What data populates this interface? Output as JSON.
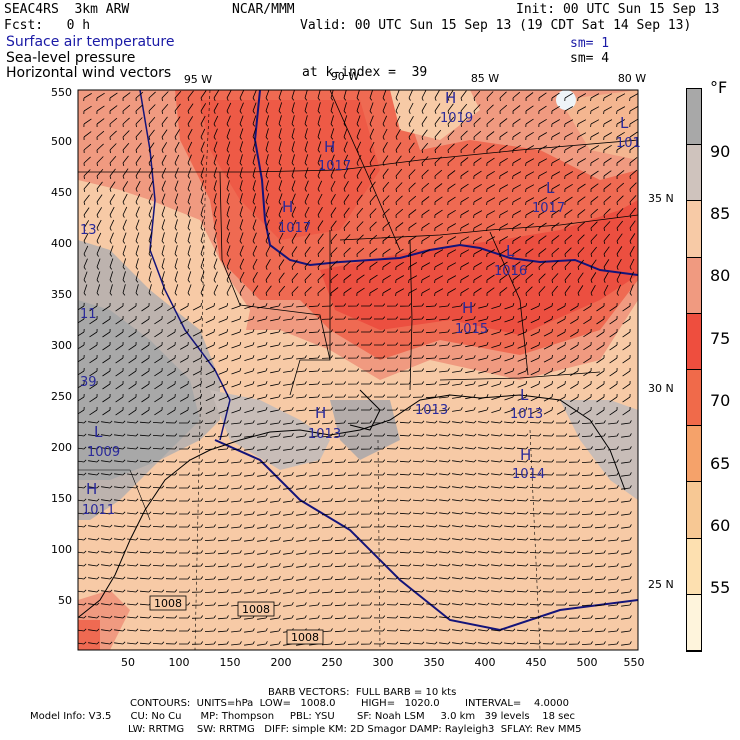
{
  "header": {
    "model": "SEAC4RS  3km ARW",
    "org": "NCAR/MMM",
    "init": "Init: 00 UTC Sun 15 Sep 13",
    "fcst": "Fcst:   0 h",
    "valid": "Valid: 00 UTC Sun 15 Sep 13 (19 CDT Sat 14 Sep 13)",
    "field1": "Surface air temperature",
    "field2": "Sea-level pressure",
    "field3": "Horizontal wind vectors",
    "sm1": "sm= 1",
    "sm2": "sm= 4",
    "kindex": "at k-index =  39"
  },
  "map": {
    "x_ticks": [
      "50",
      "100",
      "150",
      "200",
      "250",
      "300",
      "350",
      "400",
      "450",
      "500",
      "550"
    ],
    "y_ticks": [
      "50",
      "100",
      "150",
      "200",
      "250",
      "300",
      "350",
      "400",
      "450",
      "500",
      "550"
    ],
    "lon_labels": [
      "95 W",
      "90 W",
      "85 W",
      "80 W"
    ],
    "lat_labels": [
      "35 N",
      "30 N",
      "25 N"
    ],
    "pressure_centers": [
      {
        "type": "H",
        "value": "1019"
      },
      {
        "type": "H",
        "value": "1017"
      },
      {
        "type": "H",
        "value": "1017"
      },
      {
        "type": "L",
        "value": "1016"
      },
      {
        "type": "H",
        "value": "1015"
      },
      {
        "type": "H",
        "value": "1013"
      },
      {
        "type": "L",
        "value": "1013"
      },
      {
        "type": "H",
        "value": "1014"
      },
      {
        "type": "L",
        "value": "1009"
      },
      {
        "type": "H",
        "value": "1011"
      },
      {
        "type": "L",
        "value": "1017"
      },
      {
        "type": "L",
        "value": "101"
      }
    ],
    "edge_labels": [
      "13",
      "11",
      "39"
    ],
    "isobar_labels": [
      "1008",
      "1008",
      "1008"
    ]
  },
  "colorbar": {
    "unit": "°F",
    "labels": [
      "90",
      "85",
      "80",
      "75",
      "70",
      "65",
      "60",
      "55"
    ],
    "colors": [
      "#a8a8a8",
      "#cfc3bd",
      "#f7caa6",
      "#f09a80",
      "#ee4e3e",
      "#f06a4a",
      "#f5a26a",
      "#f7c894",
      "#fde0b0",
      "#fef4dc"
    ]
  },
  "footer": {
    "barb": "BARB VECTORS:  FULL BARB = 10 kts",
    "contours": "CONTOURS:  UNITS=hPa  LOW=   1008.0        HIGH=   1020.0        INTERVAL=    4.0000",
    "info1": "Model Info: V3.5      CU: No Cu      MP: Thompson     PBL: YSU       SF: Noah LSM     3.0 km   39 levels    18 sec",
    "info2": "LW: RRTMG    SW: RRTMG   DIFF: simple KM: 2D Smagor DAMP: Rayleigh3  SFLAY: Rev MM5"
  }
}
